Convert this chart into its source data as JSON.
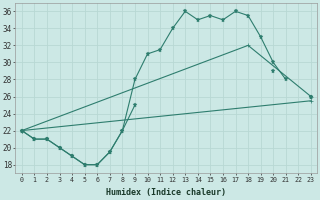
{
  "bg_color": "#cce8e5",
  "line_color": "#2e7d6e",
  "grid_color": "#b8d8d4",
  "xlim": [
    -0.5,
    23.5
  ],
  "ylim": [
    17.0,
    37.0
  ],
  "yticks": [
    18,
    20,
    22,
    24,
    26,
    28,
    30,
    32,
    34,
    36
  ],
  "xticks": [
    0,
    1,
    2,
    3,
    4,
    5,
    6,
    7,
    8,
    9,
    10,
    11,
    12,
    13,
    14,
    15,
    16,
    17,
    18,
    19,
    20,
    21,
    22,
    23
  ],
  "xlabel": "Humidex (Indice chaleur)",
  "series": {
    "jagged": [
      22,
      21,
      21,
      20,
      19,
      18,
      18,
      19.5,
      22,
      28,
      31,
      31.5,
      34,
      36,
      35,
      35.5,
      35,
      36,
      35.5,
      33,
      30,
      28,
      null,
      26
    ],
    "middle": [
      22,
      21,
      21,
      20,
      19,
      18,
      18,
      19.5,
      22,
      25,
      null,
      null,
      null,
      null,
      null,
      null,
      null,
      null,
      null,
      null,
      29,
      null,
      null,
      26
    ],
    "diag_low": {
      "x": [
        0,
        23
      ],
      "y": [
        22,
        25.5
      ]
    },
    "diag_high": {
      "x": [
        0,
        18,
        23
      ],
      "y": [
        22,
        32,
        26
      ]
    }
  }
}
